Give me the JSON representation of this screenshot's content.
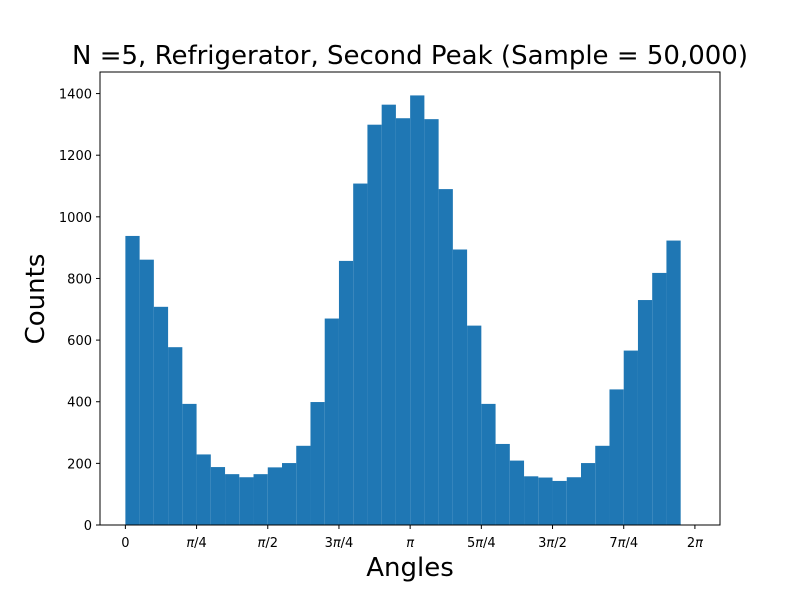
{
  "chart_data": {
    "type": "bar",
    "title": "N =5, Refrigerator, Second Peak (Sample = 50,000)",
    "xlabel": "Angles",
    "ylabel": "Counts",
    "xlim": [
      -0.28,
      6.56
    ],
    "ylim": [
      0,
      1470
    ],
    "bin_start": 0,
    "bin_end": 6.283185307179586,
    "bins": 40,
    "values": [
      938,
      861,
      708,
      577,
      393,
      229,
      188,
      165,
      155,
      165,
      187,
      201,
      257,
      399,
      670,
      857,
      1108,
      1299,
      1364,
      1320,
      1394,
      1317,
      1090,
      894,
      647,
      393,
      263,
      209,
      158,
      154,
      143,
      155,
      201,
      257,
      440,
      566,
      730,
      818,
      923,
      0
    ],
    "yticks": [
      0,
      200,
      400,
      600,
      800,
      1000,
      1200,
      1400
    ],
    "xticks": [
      {
        "value": 0,
        "label": "0"
      },
      {
        "value": 0.7853981633974483,
        "label": "π/4"
      },
      {
        "value": 1.5707963267948966,
        "label": "π/2"
      },
      {
        "value": 2.356194490192345,
        "label": "3π/4"
      },
      {
        "value": 3.141592653589793,
        "label": "π"
      },
      {
        "value": 3.9269908169872414,
        "label": "5π/4"
      },
      {
        "value": 4.71238898038469,
        "label": "3π/2"
      },
      {
        "value": 5.497787143782138,
        "label": "7π/4"
      },
      {
        "value": 6.283185307179586,
        "label": "2π"
      }
    ],
    "bar_color": "#1f77b4",
    "grid": false,
    "legend": "none"
  }
}
